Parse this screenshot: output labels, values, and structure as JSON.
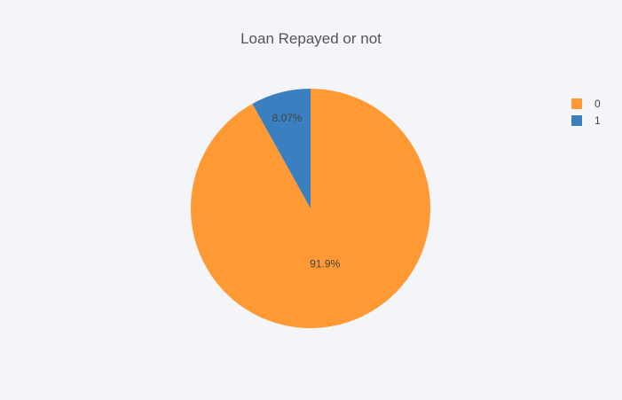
{
  "title": "Loan Repayed or not",
  "chart_data": {
    "type": "pie",
    "title": "Loan Repayed or not",
    "categories": [
      "0",
      "1"
    ],
    "values": [
      91.93,
      8.07
    ],
    "labels": [
      "91.9%",
      "8.07%"
    ],
    "colors": [
      "#ff9933",
      "#3a80c0"
    ],
    "legend_position": "top-right"
  },
  "legend": {
    "items": [
      {
        "label": "0",
        "color": "#ff9933"
      },
      {
        "label": "1",
        "color": "#3a80c0"
      }
    ]
  }
}
